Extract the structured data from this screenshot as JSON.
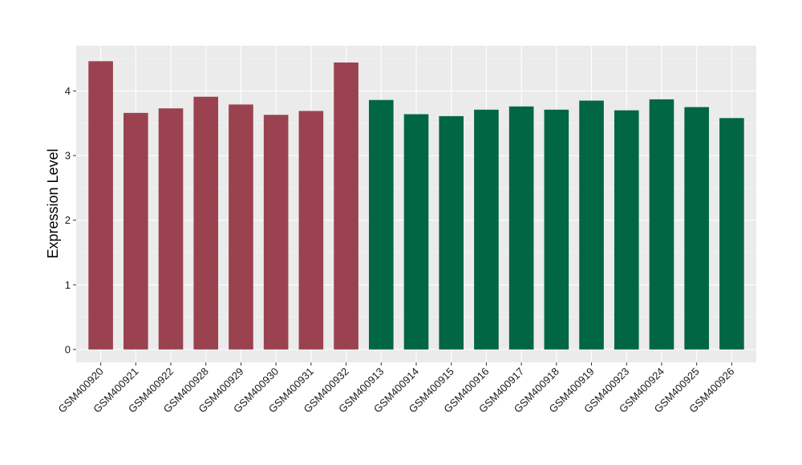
{
  "chart_data": {
    "type": "bar",
    "title": "",
    "xlabel": "",
    "ylabel": "Expression Level",
    "ylim": [
      -0.2,
      4.7
    ],
    "yticks": [
      0,
      1,
      2,
      3,
      4
    ],
    "grid": true,
    "legend": "none",
    "colors": {
      "group_a": "#9a4250",
      "group_b": "#006644",
      "panel": "#ebebeb"
    },
    "categories": [
      "GSM400920",
      "GSM400921",
      "GSM400922",
      "GSM400928",
      "GSM400929",
      "GSM400930",
      "GSM400931",
      "GSM400932",
      "GSM400913",
      "GSM400914",
      "GSM400915",
      "GSM400916",
      "GSM400917",
      "GSM400918",
      "GSM400919",
      "GSM400923",
      "GSM400924",
      "GSM400925",
      "GSM400926"
    ],
    "values": [
      4.46,
      3.66,
      3.73,
      3.91,
      3.79,
      3.63,
      3.69,
      4.44,
      3.86,
      3.64,
      3.61,
      3.71,
      3.76,
      3.71,
      3.85,
      3.7,
      3.87,
      3.75,
      3.58
    ],
    "groups": [
      "a",
      "a",
      "a",
      "a",
      "a",
      "a",
      "a",
      "a",
      "b",
      "b",
      "b",
      "b",
      "b",
      "b",
      "b",
      "b",
      "b",
      "b",
      "b"
    ]
  }
}
